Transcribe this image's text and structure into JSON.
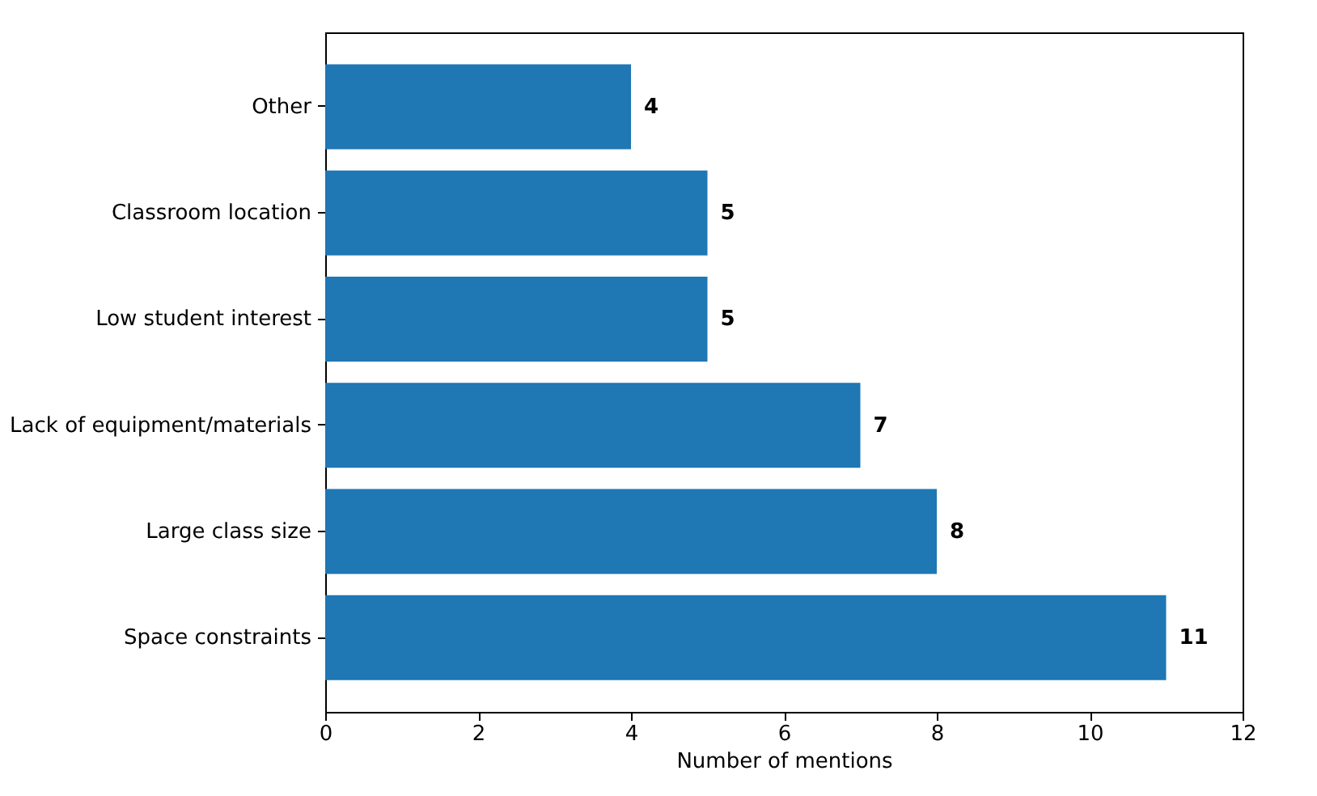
{
  "chart_data": {
    "type": "bar",
    "orientation": "horizontal",
    "xlabel": "Number of mentions",
    "categories": [
      "Other",
      "Classroom location",
      "Low student interest",
      "Lack of equipment/materials",
      "Large class size",
      "Space constraints"
    ],
    "values": [
      4,
      5,
      5,
      7,
      8,
      11
    ],
    "color": "#1f77b4",
    "xlim": [
      0,
      12
    ],
    "xticks": [
      0,
      2,
      4,
      6,
      8,
      10,
      12
    ],
    "data_labels": true,
    "grid": false
  }
}
